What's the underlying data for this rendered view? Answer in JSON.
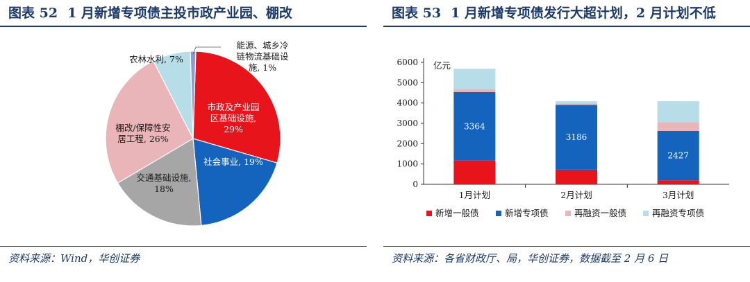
{
  "left": {
    "fig_no": "图表 52",
    "title": "1 月新增专项债主投市政产业园、棚改",
    "source": "资料来源：Wind，华创证券"
  },
  "right": {
    "fig_no": "图表 53",
    "title": "1 月新增专项债发行大超计划，2 月计划不低",
    "source": "资料来源：各省财政厅、局，华创证券，数据截至 2 月 6 日"
  },
  "chart_data": [
    {
      "type": "pie",
      "title": "1 月新增专项债主投市政产业园、棚改",
      "slices": [
        {
          "label": "市政及产业园区基础设施",
          "value": 29,
          "pct_label": "29%",
          "color": "#e8141c",
          "label_lines": [
            "市政及产业园",
            "区基础设施,",
            "29%"
          ],
          "label_color": "#ffffff"
        },
        {
          "label": "社会事业",
          "value": 19,
          "pct_label": "19%",
          "color": "#1463bd",
          "label_lines": [
            "社会事业, 19%"
          ],
          "label_color": "#ffffff"
        },
        {
          "label": "交通基础设施",
          "value": 18,
          "pct_label": "18%",
          "color": "#a6a6a6",
          "label_lines": [
            "交通基础设施,",
            "18%"
          ],
          "label_color": "#1a1a1a"
        },
        {
          "label": "棚改/保障性安居工程",
          "value": 26,
          "pct_label": "26%",
          "color": "#e9b5b8",
          "label_lines": [
            "棚改/保障性安",
            "居工程, 26%"
          ],
          "label_color": "#1a1a1a"
        },
        {
          "label": "农林水利",
          "value": 7,
          "pct_label": "7%",
          "color": "#b7dde8",
          "label_lines": [
            "农林水利, 7%"
          ],
          "label_color": "#1a1a1a"
        },
        {
          "label": "能源、城乡冷链物流基础设施",
          "value": 1,
          "pct_label": "1%",
          "color": "#8d9bd1",
          "label_lines": [
            "能源、城乡冷",
            "链物流基础设",
            "施, 1%"
          ],
          "label_color": "#1a1a1a"
        }
      ]
    },
    {
      "type": "bar",
      "stacked": true,
      "title": "1 月新增专项债发行大超计划，2 月计划不低",
      "unit_label": "亿元",
      "categories": [
        "1月计划",
        "2月计划",
        "3月计划"
      ],
      "ylim": [
        0,
        6000
      ],
      "yticks": [
        0,
        1000,
        2000,
        3000,
        4000,
        5000,
        6000
      ],
      "legend_position": "bottom",
      "series": [
        {
          "name": "新增一般债",
          "color": "#e8141c",
          "values": [
            1170,
            720,
            200
          ]
        },
        {
          "name": "新增专项债",
          "color": "#1463bd",
          "values": [
            3364,
            3186,
            2427
          ],
          "data_labels": [
            "3364",
            "3186",
            "2427"
          ]
        },
        {
          "name": "再融资一般债",
          "color": "#e9b5b8",
          "values": [
            150,
            70,
            430
          ]
        },
        {
          "name": "再融资专项债",
          "color": "#b7dde8",
          "values": [
            1000,
            110,
            1030
          ]
        }
      ]
    }
  ]
}
